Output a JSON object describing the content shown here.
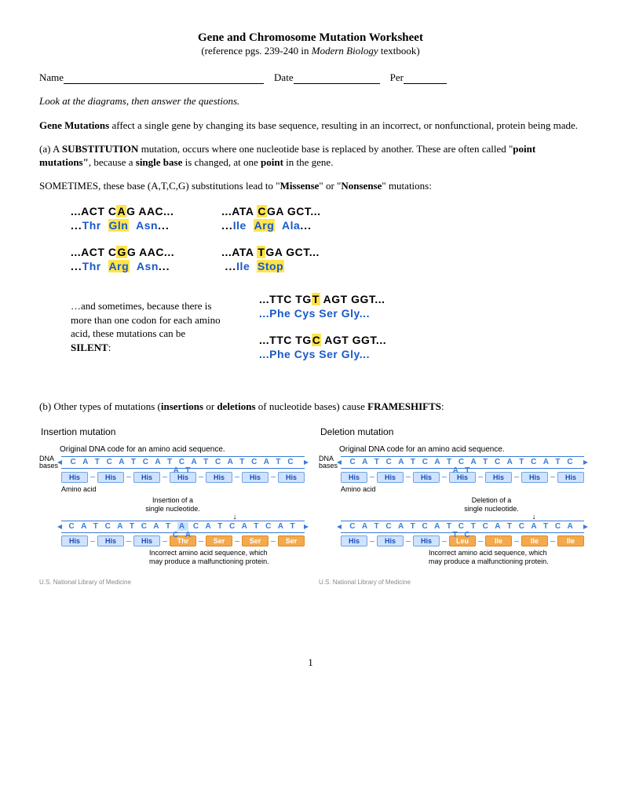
{
  "header": {
    "title": "Gene and Chromosome Mutation Worksheet",
    "subtitle_pre": "(reference pgs. 239-240 in ",
    "subtitle_em": "Modern Biology",
    "subtitle_post": " textbook)"
  },
  "form": {
    "name": "Name",
    "date": "Date",
    "per": "Per"
  },
  "instruction": "Look at the diagrams, then answer the questions.",
  "p1_strong": "Gene Mutations",
  "p1_rest": " affect a single gene by changing its base sequence, resulting in an incorrect, or nonfunctional, protein being made.",
  "p2_a": "(a) A ",
  "p2_sub": "SUBSTITUTION",
  "p2_mid": " mutation, occurs where one nucleotide base is replaced by another.  These are often called \"",
  "p2_point": "point mutations\"",
  "p2_because": ", because a ",
  "p2_single": "single base",
  "p2_changed": " is changed, at one ",
  "p2_pt": "point",
  "p2_end": " in the gene.",
  "p3_pre": "SOMETIMES, these base (A,T,C,G) substitutions lead to \"",
  "p3_mis": "Missense",
  "p3_or": "\" or \"",
  "p3_non": "Nonsense",
  "p3_end": "\" mutations:",
  "missense": {
    "dna1": {
      "pre": "...ACT C",
      "hl": "A",
      "post": "G AAC..."
    },
    "aa1": "...Thr  Gln  Asn...",
    "aa1_hl": "Gln",
    "dna2": {
      "pre": "...ACT C",
      "hl": "G",
      "post": "G AAC..."
    },
    "aa2": "...Thr  Arg  Asn...",
    "aa2_hl": "Arg"
  },
  "nonsense": {
    "dna1": {
      "pre": "...ATA ",
      "hl": "C",
      "post": "GA GCT..."
    },
    "aa1_parts": [
      "...Ile  ",
      "Arg",
      "  Ala..."
    ],
    "dna2": {
      "pre": "...ATA ",
      "hl": "T",
      "post": "GA GCT..."
    },
    "aa2_parts": [
      "...Ile  ",
      "Stop",
      ""
    ]
  },
  "silent": {
    "text_pre": "…and sometimes, because there is more than one codon for each amino acid, these mutations can be ",
    "text_bold": "SILENT",
    "text_post": ":",
    "dna1": {
      "pre": "...TTC TG",
      "hl": "T",
      "post": " AGT GGT..."
    },
    "aa1": "...Phe  Cys  Ser  Gly...",
    "dna2": {
      "pre": "...TTC TG",
      "hl": "C",
      "post": " AGT GGT..."
    },
    "aa2": "...Phe  Cys  Ser  Gly..."
  },
  "pB_pre": "(b) Other types of mutations (",
  "pB_ins": "insertions",
  "pB_or": " or ",
  "pB_del": "deletions",
  "pB_mid": " of  nucleotide bases) cause ",
  "pB_fs": "FRAMESHIFTS",
  "pB_end": ":",
  "insertion": {
    "title": "Insertion mutation",
    "orig_label": "Original DNA code for an amino acid sequence.",
    "dna_label": "DNA\nbases",
    "dna1": "C A T C A T C A T C A T C A T C A T C A T",
    "aa1": [
      "His",
      "His",
      "His",
      "His",
      "His",
      "His",
      "His"
    ],
    "aa_label": "Amino acid",
    "ins_label": "Insertion of a\nsingle nucleotide.",
    "dna2_pre": "C A T C A T C A T ",
    "dna2_hl": "A",
    "dna2_post": "C A T C A T C A T C A",
    "aa2": [
      "His",
      "His",
      "His",
      "Thr",
      "Ser",
      "Ser",
      "Ser"
    ],
    "aa2_colors": [
      "b",
      "b",
      "b",
      "o",
      "o",
      "o",
      "o"
    ],
    "note": "Incorrect amino acid sequence, which\nmay produce a malfunctioning protein.",
    "credit": "U.S. National Library of Medicine"
  },
  "deletion": {
    "title": "Deletion mutation",
    "orig_label": "Original DNA code for an amino acid sequence.",
    "dna1": "C A T C A T C A T C A T C A T C A T C A T",
    "aa1": [
      "His",
      "His",
      "His",
      "His",
      "His",
      "His",
      "His"
    ],
    "aa_label": "Amino acid",
    "del_label": "Deletion of a\nsingle nucleotide.",
    "dna2": "C A T C A T C A T C T C A T C A T C A T C",
    "aa2": [
      "His",
      "His",
      "His",
      "Leu",
      "Ile",
      "Ile",
      "Ile"
    ],
    "aa2_colors": [
      "b",
      "b",
      "b",
      "o",
      "o",
      "o",
      "o"
    ],
    "note": "Incorrect amino acid sequence, which\nmay produce a malfunctioning protein.",
    "credit": "U.S. National Library of Medicine"
  },
  "page_number": "1",
  "colors": {
    "highlight": "#ffe44d",
    "aa_blue": "#1859c9",
    "diagram_blue": "#3a7bd5",
    "box_blue_bg": "#cfe2ff",
    "box_orange": "#f4a94e"
  }
}
